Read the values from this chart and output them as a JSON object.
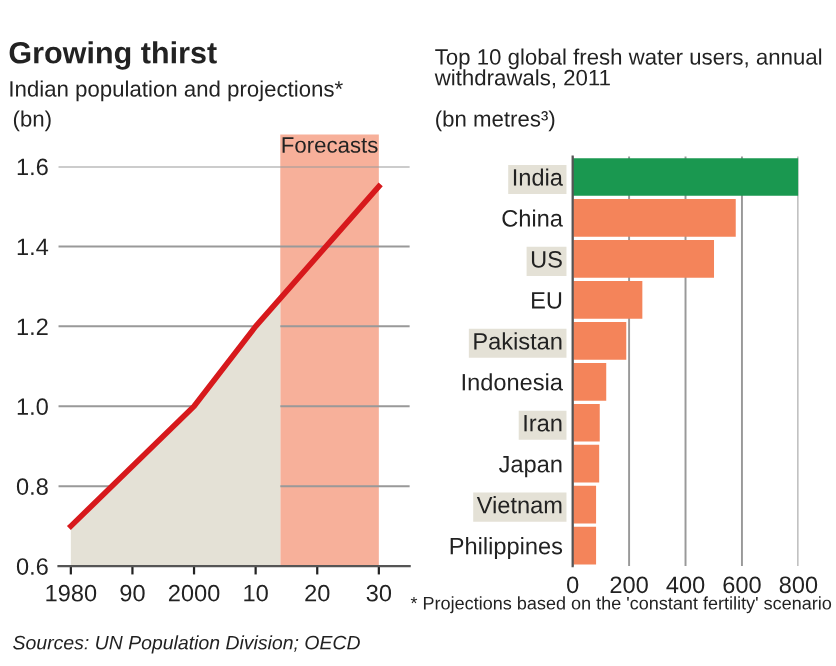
{
  "chart_data": [
    {
      "type": "line",
      "title": "Growing thirst",
      "subtitle": "Indian population and projections*",
      "ylabel": "(bn)",
      "series": [
        {
          "type": "area",
          "color": "#e4e1d6",
          "x": [
            1980,
            2000,
            2010,
            2014
          ],
          "values": [
            0.7,
            1.0,
            1.2,
            1.27
          ]
        },
        {
          "type": "line",
          "color": "#d7191c",
          "x": [
            1980,
            2000,
            2010,
            2014,
            2030
          ],
          "values": [
            0.7,
            1.0,
            1.2,
            1.27,
            1.55
          ]
        }
      ],
      "xlim": [
        1978,
        2035
      ],
      "xticks": [
        {
          "value": 1980,
          "label": "1980"
        },
        {
          "value": 1990,
          "label": "90"
        },
        {
          "value": 2000,
          "label": "2000"
        },
        {
          "value": 2010,
          "label": "10"
        },
        {
          "value": 2020,
          "label": "20"
        },
        {
          "value": 2030,
          "label": "30"
        }
      ],
      "ylim": [
        0.6,
        1.6
      ],
      "yticks": [
        0.6,
        0.8,
        {
          "value": 1.0,
          "label": "1.0"
        },
        1.2,
        1.4,
        1.6
      ],
      "grid": "y",
      "bands": [
        {
          "axis": "x",
          "from": 2014,
          "to": 2030,
          "label": "Forecasts",
          "color": "#f7b09a"
        }
      ],
      "annotations": [
        "Sources: UN Population Division; OECD"
      ]
    },
    {
      "type": "bar",
      "orientation": "horizontal",
      "title": "Top 10 global fresh water users, annual withdrawals, 2011",
      "xlabel": "(bn metres³)",
      "categories": [
        "India",
        "China",
        "US",
        "EU",
        "Pakistan",
        "Indonesia",
        "Iran",
        "Japan",
        "Vietnam",
        "Philippines"
      ],
      "values": [
        800,
        578,
        501,
        247,
        190,
        119,
        96,
        94,
        83,
        83
      ],
      "colors": [
        "#1a9850",
        "#f4845a",
        "#f4845a",
        "#f4845a",
        "#f4845a",
        "#f4845a",
        "#f4845a",
        "#f4845a",
        "#f4845a",
        "#f4845a"
      ],
      "xlim": [
        0,
        800
      ],
      "xticks": [
        0,
        200,
        400,
        600,
        800
      ],
      "grid": "x",
      "annotations": [
        "* Projections based on the 'constant fertility' scenario"
      ]
    }
  ]
}
